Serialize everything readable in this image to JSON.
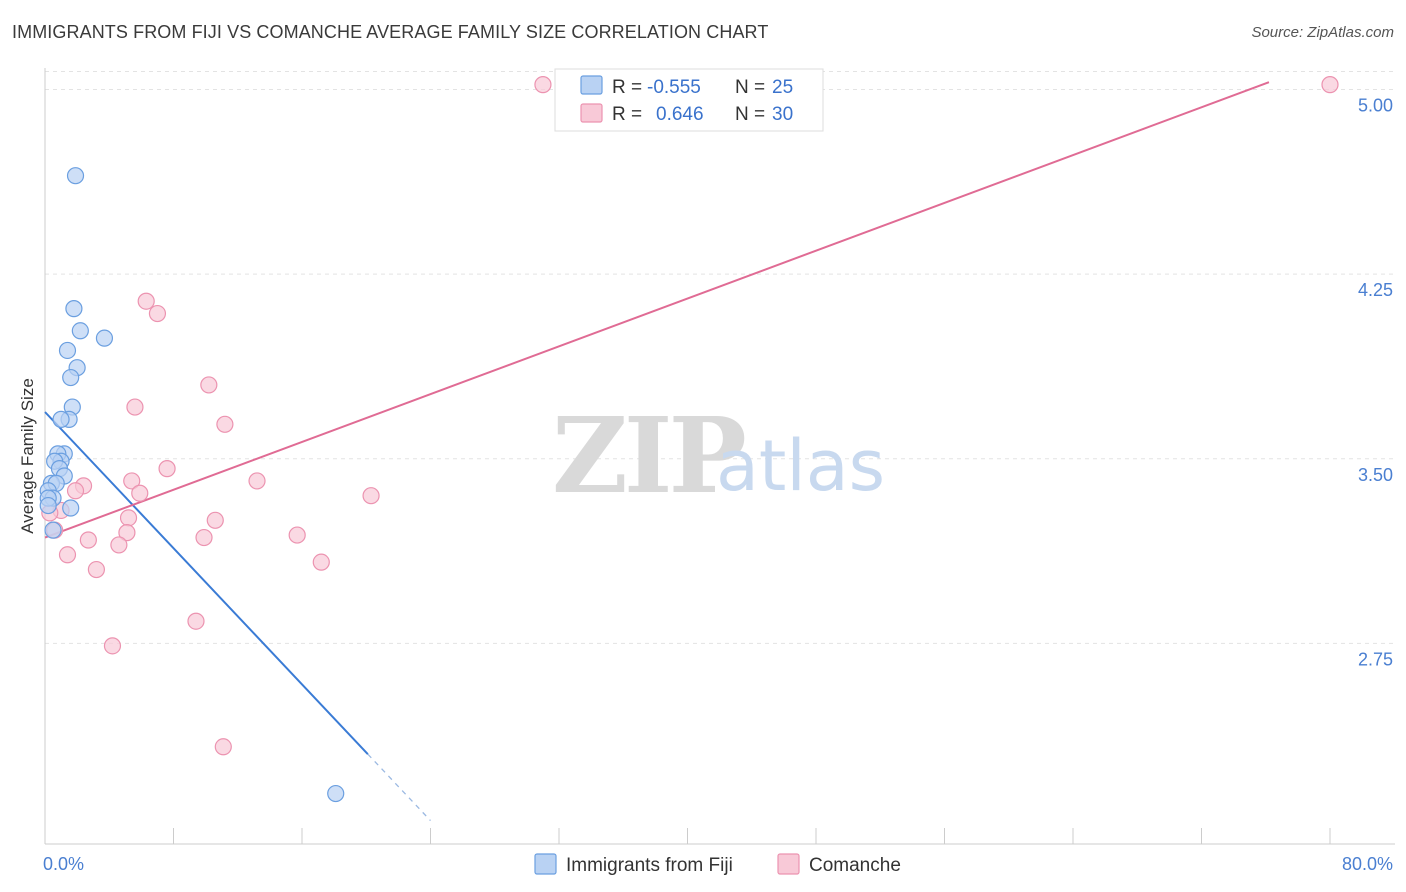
{
  "header": {
    "title": "IMMIGRANTS FROM FIJI VS COMANCHE AVERAGE FAMILY SIZE CORRELATION CHART",
    "source": "Source: ZipAtlas.com"
  },
  "watermark": {
    "zip": "ZIP",
    "atlas": "atlas"
  },
  "colors": {
    "blue_fill": "#b9d2f3",
    "blue_stroke": "#6b9fe0",
    "blue_line": "#3a7bd5",
    "pink_fill": "#f8c9d7",
    "pink_stroke": "#ec93b0",
    "pink_line": "#e06b94",
    "grid": "#e3e3e3",
    "axis_text": "#4a7fd1"
  },
  "chart_data": {
    "type": "scatter",
    "title": "IMMIGRANTS FROM FIJI VS COMANCHE AVERAGE FAMILY SIZE CORRELATION CHART",
    "xlabel": "",
    "ylabel": "Average Family Size",
    "xlim": [
      0,
      80
    ],
    "ylim": [
      2.0,
      5.12
    ],
    "x_tick_labels": [
      {
        "value": 0,
        "label": "0.0%"
      },
      {
        "value": 80,
        "label": "80.0%"
      }
    ],
    "x_minor_ticks": [
      0,
      8,
      16,
      24,
      32,
      40,
      48,
      56,
      64,
      72,
      80
    ],
    "y_ticks": [
      {
        "value": 2.75,
        "label": "2.75"
      },
      {
        "value": 3.5,
        "label": "3.50"
      },
      {
        "value": 4.25,
        "label": "4.25"
      },
      {
        "value": 5.0,
        "label": "5.00"
      }
    ],
    "legend": {
      "r_label": "R =",
      "n_label": "N =",
      "entries": [
        {
          "series": "Immigrants from Fiji",
          "r": "-0.555",
          "n": "25"
        },
        {
          "series": "Comanche",
          "r": "0.646",
          "n": "30"
        }
      ]
    },
    "series": [
      {
        "name": "Immigrants from Fiji",
        "points": [
          [
            1.9,
            4.65
          ],
          [
            1.8,
            4.11
          ],
          [
            2.2,
            4.02
          ],
          [
            3.7,
            3.99
          ],
          [
            1.4,
            3.94
          ],
          [
            2.0,
            3.87
          ],
          [
            1.6,
            3.83
          ],
          [
            1.7,
            3.71
          ],
          [
            1.5,
            3.66
          ],
          [
            1.0,
            3.66
          ],
          [
            1.2,
            3.52
          ],
          [
            0.8,
            3.52
          ],
          [
            1.0,
            3.49
          ],
          [
            0.6,
            3.49
          ],
          [
            0.9,
            3.46
          ],
          [
            1.2,
            3.43
          ],
          [
            0.4,
            3.4
          ],
          [
            0.7,
            3.4
          ],
          [
            0.2,
            3.37
          ],
          [
            0.5,
            3.34
          ],
          [
            0.2,
            3.34
          ],
          [
            1.6,
            3.3
          ],
          [
            0.2,
            3.31
          ],
          [
            0.5,
            3.21
          ],
          [
            18.1,
            2.14
          ]
        ],
        "trend": {
          "x0": 0,
          "y0": 3.69,
          "x1": 20.1,
          "y1": 2.3,
          "dash_to_x": 24,
          "dash_to_y": 2.03
        }
      },
      {
        "name": "Comanche",
        "points": [
          [
            31.0,
            5.02
          ],
          [
            80.0,
            5.02
          ],
          [
            6.3,
            4.14
          ],
          [
            7.0,
            4.09
          ],
          [
            10.2,
            3.8
          ],
          [
            5.6,
            3.71
          ],
          [
            11.2,
            3.64
          ],
          [
            7.6,
            3.46
          ],
          [
            13.2,
            3.41
          ],
          [
            5.4,
            3.41
          ],
          [
            2.4,
            3.39
          ],
          [
            5.9,
            3.36
          ],
          [
            1.9,
            3.37
          ],
          [
            20.3,
            3.35
          ],
          [
            1.0,
            3.29
          ],
          [
            0.3,
            3.28
          ],
          [
            10.6,
            3.25
          ],
          [
            5.2,
            3.26
          ],
          [
            0.6,
            3.21
          ],
          [
            5.1,
            3.2
          ],
          [
            15.7,
            3.19
          ],
          [
            2.7,
            3.17
          ],
          [
            9.9,
            3.18
          ],
          [
            4.6,
            3.15
          ],
          [
            1.4,
            3.11
          ],
          [
            17.2,
            3.08
          ],
          [
            3.2,
            3.05
          ],
          [
            9.4,
            2.84
          ],
          [
            4.2,
            2.74
          ],
          [
            11.1,
            2.33
          ]
        ],
        "trend": {
          "x0": 0,
          "y0": 3.18,
          "x1": 76.2,
          "y1": 5.03
        }
      }
    ]
  }
}
